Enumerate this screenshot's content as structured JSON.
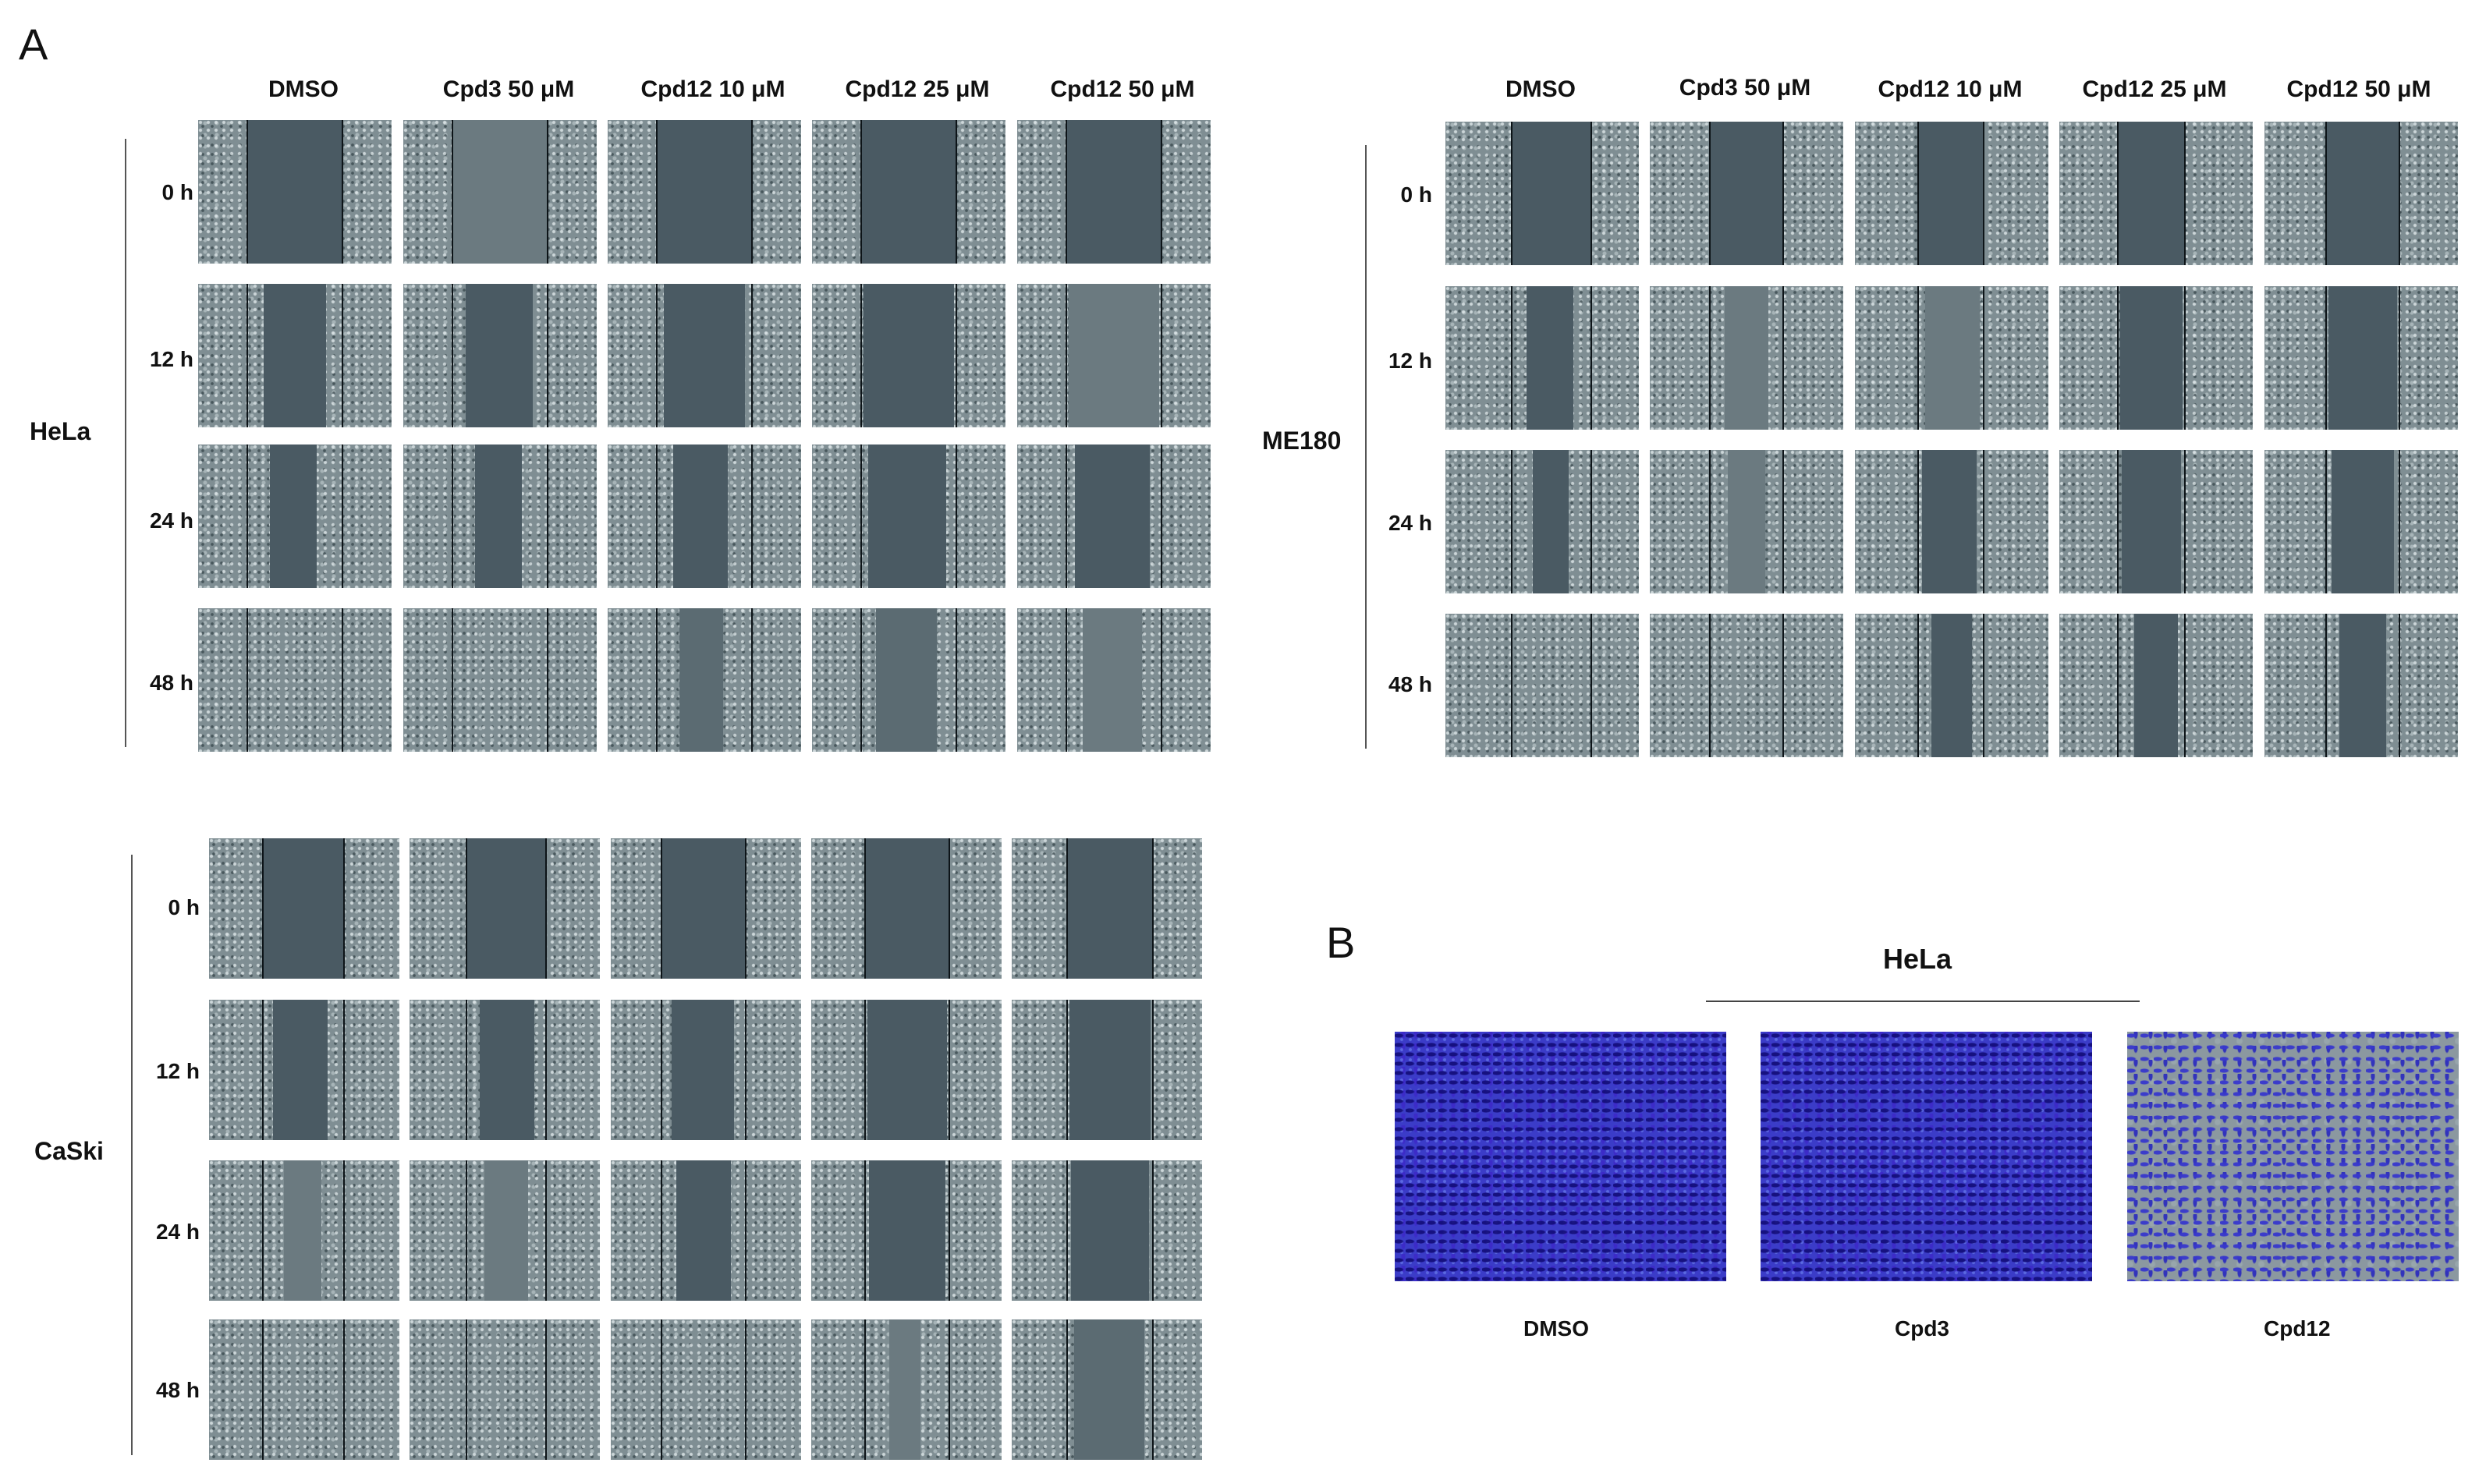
{
  "panel_a": {
    "letter": "A",
    "hela": {
      "label": "HeLa",
      "conditions": [
        "DMSO",
        "Cpd3 50 μM",
        "Cpd12 10 μM",
        "Cpd12 25 μM",
        "Cpd12 50 μM"
      ],
      "times": [
        "0 h",
        "12 h",
        "24 h",
        "48 h"
      ]
    },
    "me180": {
      "label": "ME180",
      "conditions": [
        "DMSO",
        "Cpd3 50 μM",
        "Cpd12 10 μM",
        "Cpd12 25 μM",
        "Cpd12 50 μM"
      ],
      "times": [
        "0 h",
        "12 h",
        "24 h",
        "48 h"
      ]
    },
    "caski": {
      "label": "CaSki",
      "times": [
        "0 h",
        "12 h",
        "24 h",
        "48 h"
      ]
    }
  },
  "panel_b": {
    "letter": "B",
    "cell_line": "HeLa",
    "images": [
      "DMSO",
      "Cpd3",
      "Cpd12"
    ]
  },
  "colors": {
    "micrograph_bg": "#7f8e93",
    "wound_gap": "#4a5a63",
    "stain_dense": "#3b3cc8",
    "stain_sparse_bg": "#8b98a0"
  }
}
